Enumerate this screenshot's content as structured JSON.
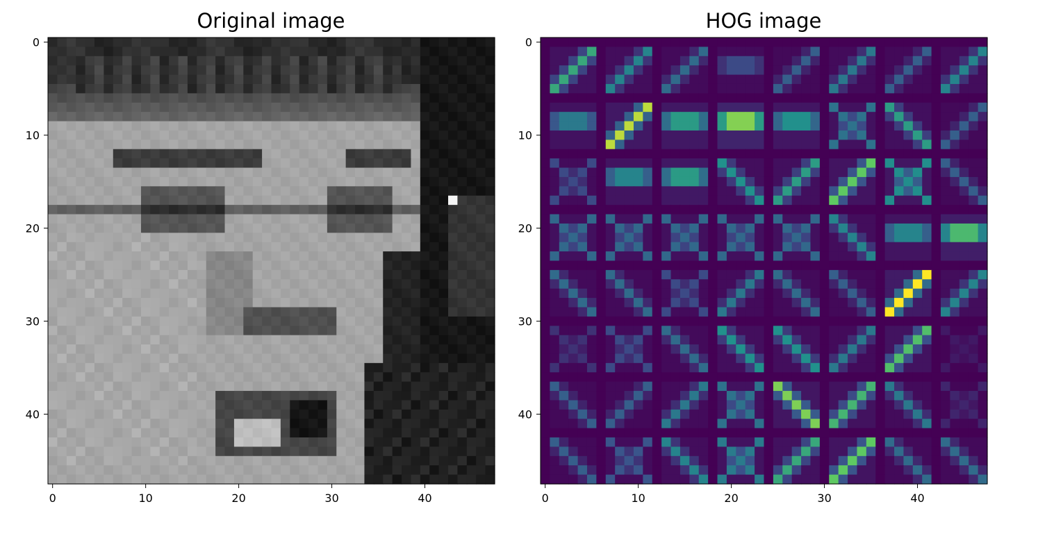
{
  "chart_data": [
    {
      "type": "heatmap",
      "title": "Original image",
      "colormap": "gray",
      "image_size": [
        48,
        48
      ],
      "xticks": [
        "0",
        "10",
        "20",
        "30",
        "40"
      ],
      "yticks": [
        "0",
        "10",
        "20",
        "30",
        "40"
      ],
      "xlim": [
        -0.5,
        47.5
      ],
      "ylim": [
        47.5,
        -0.5
      ],
      "content": "grayscale 48x48 face image (FER-style) with eyebrows, eyes, nose and open mouth"
    },
    {
      "type": "heatmap",
      "title": "HOG image",
      "colormap": "viridis",
      "image_size": [
        48,
        48
      ],
      "cells_per_axis": 8,
      "cell_size": 6,
      "xticks": [
        "0",
        "10",
        "20",
        "30",
        "40"
      ],
      "yticks": [
        "0",
        "10",
        "20",
        "30",
        "40"
      ],
      "xlim": [
        -0.5,
        47.5
      ],
      "ylim": [
        47.5,
        -0.5
      ],
      "cell_orientations": [
        [
          "d",
          "d",
          "d",
          "h",
          "d",
          "d",
          "d",
          "d"
        ],
        [
          "h",
          "d",
          "h",
          "h",
          "h",
          "x",
          "a",
          "d"
        ],
        [
          "x",
          "h",
          "h",
          "a",
          "d",
          "d",
          "x",
          "a"
        ],
        [
          "x",
          "x",
          "x",
          "x",
          "x",
          "a",
          "h",
          "h"
        ],
        [
          "a",
          "a",
          "x",
          "d",
          "a",
          "a",
          "d",
          "d"
        ],
        [
          "x",
          "x",
          "a",
          "a",
          "a",
          "d",
          "d",
          "x"
        ],
        [
          "a",
          "d",
          "d",
          "x",
          "a",
          "d",
          "a",
          "x"
        ],
        [
          "a",
          "x",
          "a",
          "x",
          "d",
          "d",
          "a",
          "a"
        ]
      ],
      "cell_strength": [
        [
          0.6,
          0.45,
          0.35,
          0.25,
          0.3,
          0.4,
          0.3,
          0.45
        ],
        [
          0.45,
          0.9,
          0.6,
          0.9,
          0.55,
          0.5,
          0.55,
          0.3
        ],
        [
          0.3,
          0.5,
          0.6,
          0.5,
          0.55,
          0.75,
          0.65,
          0.3
        ],
        [
          0.45,
          0.45,
          0.45,
          0.45,
          0.45,
          0.45,
          0.5,
          0.75
        ],
        [
          0.35,
          0.35,
          0.3,
          0.4,
          0.35,
          0.3,
          1.0,
          0.45
        ],
        [
          0.2,
          0.3,
          0.35,
          0.5,
          0.5,
          0.4,
          0.7,
          0.1
        ],
        [
          0.3,
          0.3,
          0.4,
          0.5,
          0.8,
          0.65,
          0.4,
          0.15
        ],
        [
          0.3,
          0.35,
          0.45,
          0.55,
          0.6,
          0.75,
          0.35,
          0.35
        ]
      ]
    }
  ]
}
